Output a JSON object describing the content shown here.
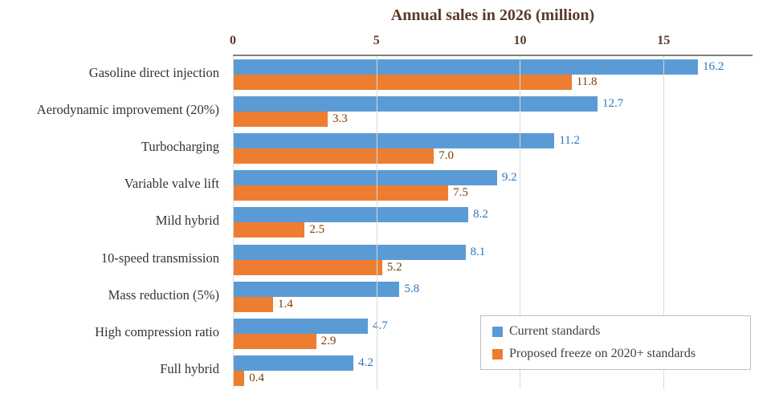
{
  "chart_data": {
    "type": "bar",
    "orientation": "horizontal",
    "title": "Annual sales in 2026 (million)",
    "categories": [
      "Gasoline direct injection",
      "Aerodynamic improvement (20%)",
      "Turbocharging",
      "Variable valve lift",
      "Mild hybrid",
      "10-speed transmission",
      "Mass reduction (5%)",
      "High compression ratio",
      "Full hybrid"
    ],
    "series": [
      {
        "name": "Current standards",
        "color": "#5B9BD5",
        "label_color": "#2E75B6",
        "values": [
          16.2,
          12.7,
          11.2,
          9.2,
          8.2,
          8.1,
          5.8,
          4.7,
          4.2
        ]
      },
      {
        "name": "Proposed freeze on 2020+ standards",
        "color": "#ED7D31",
        "label_color": "#833C00",
        "values": [
          11.8,
          3.3,
          7.0,
          7.5,
          2.5,
          5.2,
          1.4,
          2.9,
          0.4
        ]
      }
    ],
    "x_ticks": [
      0,
      5,
      10,
      15
    ],
    "xlim": [
      0,
      18.1
    ],
    "axis_position": "top",
    "legend_position": "bottom-right",
    "grid": true
  }
}
